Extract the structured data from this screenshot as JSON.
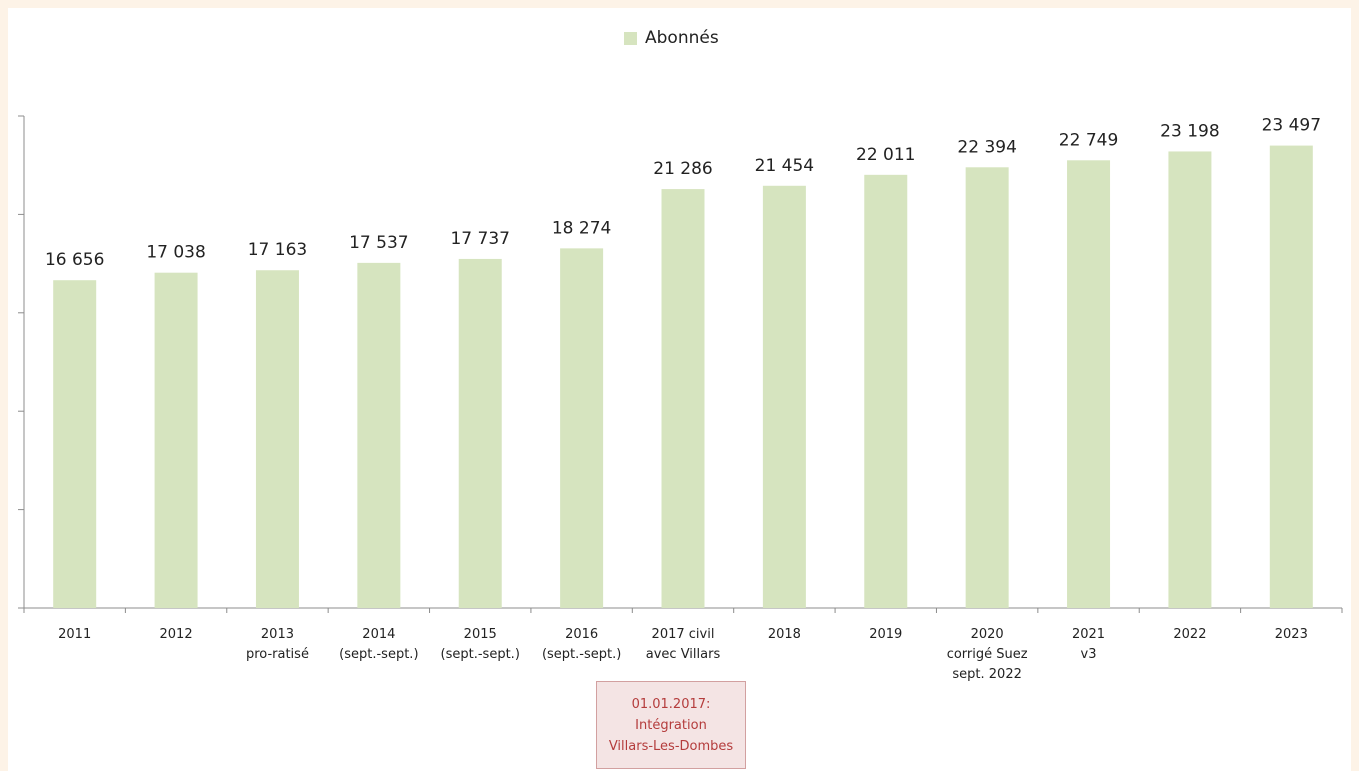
{
  "chart_data": {
    "type": "bar",
    "categories": [
      "2011",
      "2012",
      "2013\npro-ratisé",
      "2014\n(sept.-sept.)",
      "2015\n(sept.-sept.)",
      "2016\n(sept.-sept.)",
      "2017 civil\navec Villars",
      "2018",
      "2019",
      "2020\ncorrigé Suez\nsept. 2022",
      "2021\nv3",
      "2022",
      "2023"
    ],
    "series": [
      {
        "name": "Abonnés",
        "values": [
          16656,
          17038,
          17163,
          17537,
          17737,
          18274,
          21286,
          21454,
          22011,
          22394,
          22749,
          23198,
          23497
        ],
        "labels": [
          "16 656",
          "17 038",
          "17 163",
          "17 537",
          "17 737",
          "18 274",
          "21 286",
          "21 454",
          "22 011",
          "22 394",
          "22 749",
          "23 198",
          "23 497"
        ],
        "color": "#d6e4bf"
      }
    ],
    "ylim": [
      0,
      25000
    ],
    "grid": false,
    "legend_position": "top-center",
    "annotations": [
      "01.01.2017:\nIntégration\nVillars-Les-Dombes"
    ]
  },
  "colors": {
    "bar": "#d6e4bf",
    "axis": "#8c8c8c",
    "annotation_text": "#b43c3c",
    "annotation_border": "#d2a0a0",
    "background": "#fdf3e7"
  }
}
